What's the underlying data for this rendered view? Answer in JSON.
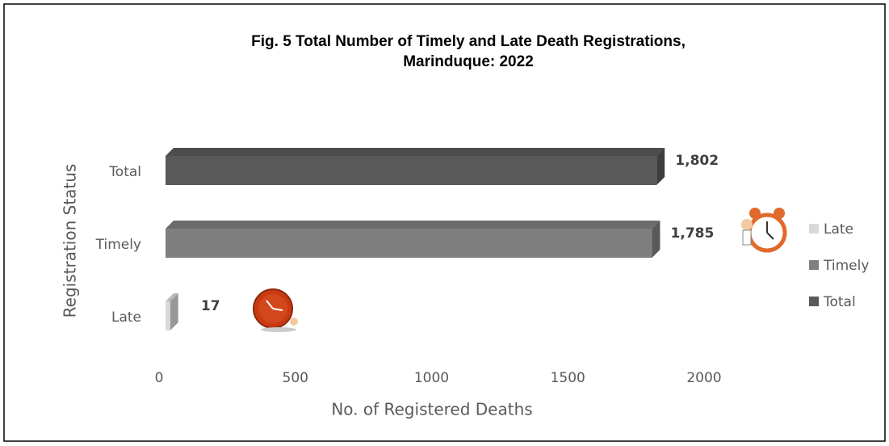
{
  "chart_data": {
    "type": "bar",
    "orientation": "horizontal",
    "title": [
      "Fig. 5 Total Number of Timely and Late Death Registrations,",
      "Marinduque: 2022"
    ],
    "x_label": "No. of Registered Deaths",
    "y_label": "Registration Status",
    "categories": [
      "Late",
      "Timely",
      "Total"
    ],
    "series": [
      {
        "name": "Late",
        "color": "#d9d9d9",
        "values": [
          17,
          null,
          null
        ],
        "value_labels": [
          "17",
          null,
          null
        ]
      },
      {
        "name": "Timely",
        "color": "#7f7f7f",
        "values": [
          null,
          1785,
          null
        ],
        "value_labels": [
          null,
          "1,785",
          null
        ]
      },
      {
        "name": "Total",
        "color": "#595959",
        "values": [
          null,
          null,
          1802
        ],
        "value_labels": [
          null,
          null,
          "1,802"
        ]
      }
    ],
    "xlim": [
      0,
      2000
    ],
    "xticks": [
      0,
      500,
      1000,
      1500,
      2000
    ],
    "legend": "right"
  }
}
